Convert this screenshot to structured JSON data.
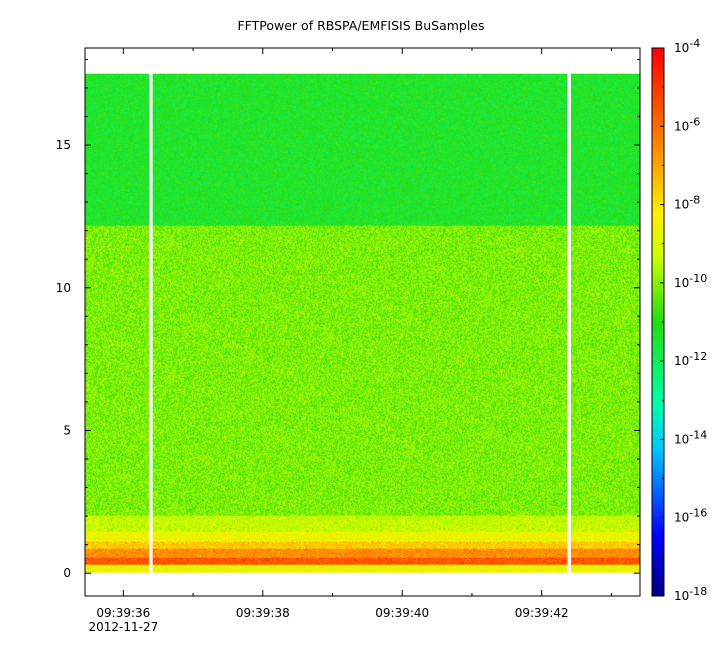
{
  "chart_data": {
    "type": "heatmap",
    "title": "FFTPower of RBSPA/EMFISIS  BuSamples",
    "xlabel": "",
    "ylabel": "",
    "x_ticks": [
      {
        "label": "09:39:36",
        "sub": "2012-11-27",
        "seconds": 36.0
      },
      {
        "label": "09:39:38",
        "sub": "",
        "seconds": 38.0
      },
      {
        "label": "09:39:40",
        "sub": "",
        "seconds": 40.0
      },
      {
        "label": "09:39:42",
        "sub": "",
        "seconds": 42.0
      }
    ],
    "x_minor_seconds": [
      37.0,
      39.0,
      41.0,
      43.0
    ],
    "xlim_seconds": [
      35.45,
      43.41
    ],
    "y_ticks": [
      0,
      5,
      10,
      15
    ],
    "ylim": [
      -0.8,
      18.4
    ],
    "data_ymax": 17.5,
    "data_gaps_seconds": [
      [
        36.37,
        36.42
      ],
      [
        42.37,
        42.42
      ]
    ],
    "colorbar": {
      "scale": "log",
      "range_exponent": [
        -18,
        -4
      ],
      "tick_exponents": [
        -18,
        -16,
        -14,
        -12,
        -10,
        -8,
        -6,
        -4
      ],
      "tick_base": "10"
    },
    "bands": [
      {
        "y": [
          0.0,
          0.3
        ],
        "level": -8.6
      },
      {
        "y": [
          0.3,
          0.55
        ],
        "level": -5.6
      },
      {
        "y": [
          0.55,
          0.85
        ],
        "level": -6.6
      },
      {
        "y": [
          0.85,
          1.1
        ],
        "level": -7.6
      },
      {
        "y": [
          1.1,
          1.45
        ],
        "level": -8.6
      },
      {
        "y": [
          1.45,
          2.0
        ],
        "level": -9.3
      },
      {
        "y": [
          2.0,
          12.2
        ],
        "level": -10.1
      },
      {
        "y": [
          12.2,
          17.5
        ],
        "level": -11.3
      }
    ]
  }
}
